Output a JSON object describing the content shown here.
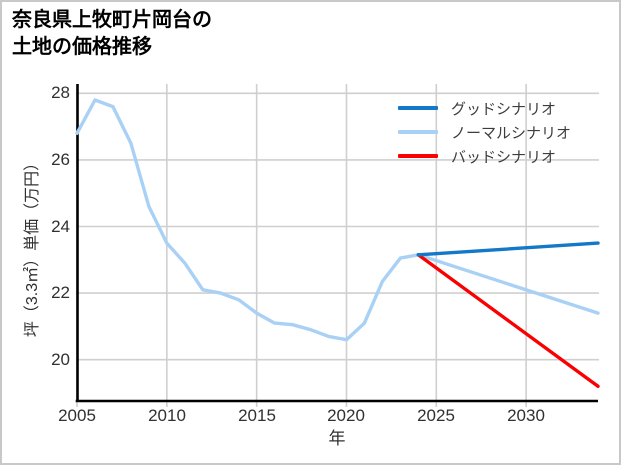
{
  "title": {
    "line1": "奈良県上牧町片岡台の",
    "line2": "土地の価格推移"
  },
  "colors": {
    "good": "#1478c8",
    "normal": "#a9d1f5",
    "bad": "#fa0000",
    "history": "#a9d1f5",
    "grid": "#cfcfcf",
    "axis": "#000000"
  },
  "chart_data": {
    "type": "line",
    "title": "奈良県上牧町片岡台の土地の価格推移",
    "xlabel": "年",
    "ylabel": "坪（3.3㎡）単価（万円）",
    "xlim": [
      2005,
      2034
    ],
    "ylim": [
      18.7,
      28.3
    ],
    "xticks": [
      "2005",
      "2010",
      "2015",
      "2020",
      "2025",
      "2030"
    ],
    "xtick_values": [
      2005,
      2010,
      2015,
      2020,
      2025,
      2030
    ],
    "yticks": [
      "20",
      "22",
      "24",
      "26",
      "28"
    ],
    "ytick_values": [
      20,
      22,
      24,
      26,
      28
    ],
    "grid": true,
    "legend_position": "top-right-inside",
    "series": [
      {
        "id": "history",
        "color": "#a9d1f5",
        "width": 3.4,
        "x": [
          2005,
          2006,
          2007,
          2008,
          2009,
          2010,
          2011,
          2012,
          2013,
          2014,
          2015,
          2016,
          2017,
          2018,
          2019,
          2020,
          2021,
          2022,
          2023,
          2024
        ],
        "y": [
          26.8,
          27.8,
          27.6,
          26.5,
          24.6,
          23.5,
          22.9,
          22.1,
          22.0,
          21.8,
          21.4,
          21.1,
          21.05,
          20.9,
          20.7,
          20.6,
          21.1,
          22.35,
          23.05,
          23.15
        ]
      },
      {
        "id": "normal",
        "label": "ノーマルシナリオ",
        "color": "#a9d1f5",
        "width": 3.4,
        "x": [
          2024,
          2034
        ],
        "y": [
          23.15,
          21.4
        ]
      },
      {
        "id": "bad",
        "label": "バッドシナリオ",
        "color": "#fa0000",
        "width": 3.4,
        "x": [
          2024,
          2034
        ],
        "y": [
          23.15,
          19.2
        ]
      },
      {
        "id": "good",
        "label": "グッドシナリオ",
        "color": "#1478c8",
        "width": 3.4,
        "x": [
          2024,
          2034
        ],
        "y": [
          23.15,
          23.5
        ]
      }
    ],
    "legend": [
      {
        "label": "グッドシナリオ",
        "color": "#1478c8"
      },
      {
        "label": "ノーマルシナリオ",
        "color": "#a9d1f5"
      },
      {
        "label": "バッドシナリオ",
        "color": "#fa0000"
      }
    ]
  }
}
